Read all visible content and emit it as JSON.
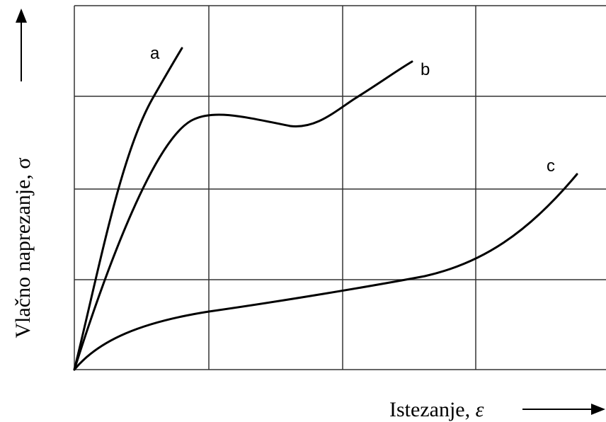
{
  "axes": {
    "y_label": "Vlačno naprezanje, σ",
    "x_label": "Istezanje,",
    "x_symbol": "ε"
  },
  "curves": [
    {
      "label": "a"
    },
    {
      "label": "b"
    },
    {
      "label": "c"
    }
  ]
}
